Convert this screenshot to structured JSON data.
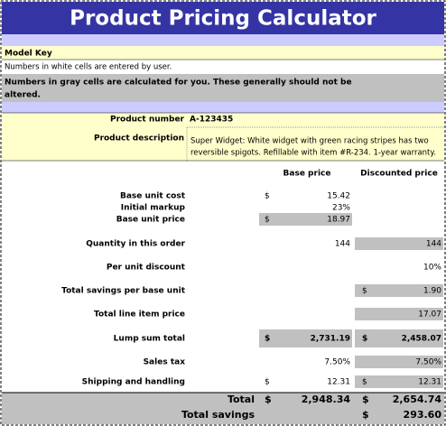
{
  "header": {
    "title": "Product Pricing Calculator"
  },
  "key": {
    "title": "Model Key",
    "white_note": "Numbers in white cells are entered by user.",
    "gray_note": [
      "Numbers in gray cells are calculated for you. These generally should not be",
      "altered."
    ]
  },
  "product": {
    "number_label": "Product number",
    "number": "A-123435",
    "description_label": "Product description",
    "description": [
      "Super Widget: White widget with green racing stripes has two",
      "reversible spigots. Refillable with item #R-234. 1-year warranty."
    ]
  },
  "columns": [
    "Base price",
    "Discounted price"
  ],
  "rows": [
    {
      "label": "Base unit cost",
      "base_currency": "$",
      "base": "15.42"
    },
    {
      "label": "Initial markup",
      "base": "23%"
    },
    {
      "label": "Base unit price",
      "base_currency": "$",
      "base": "18.97"
    },
    {
      "label": "Quantity in this order",
      "base": "144",
      "discounted": "144"
    },
    {
      "label": "Per unit discount",
      "discounted": "10%"
    },
    {
      "label": "Total savings per base unit",
      "discounted_currency": "$",
      "discounted": "1.90"
    },
    {
      "label": "Total line item price",
      "discounted": "17.07"
    },
    {
      "label": "Lump sum total",
      "base_currency": "$",
      "base": "2,731.19",
      "discounted_currency": "$",
      "discounted": "2,458.07"
    },
    {
      "label": "Sales tax",
      "base": "7.50%",
      "discounted": "7.50%"
    },
    {
      "label": "Shipping and handling",
      "base_currency": "$",
      "base": "12.31",
      "discounted_currency": "$",
      "discounted": "12.31"
    }
  ],
  "totals": [
    {
      "label": "Total",
      "base_currency": "$",
      "base": "2,948.34",
      "discounted_currency": "$",
      "discounted": "2,654.74"
    },
    {
      "label": "Total savings",
      "discounted_currency": "$",
      "discounted": "293.60"
    }
  ]
}
